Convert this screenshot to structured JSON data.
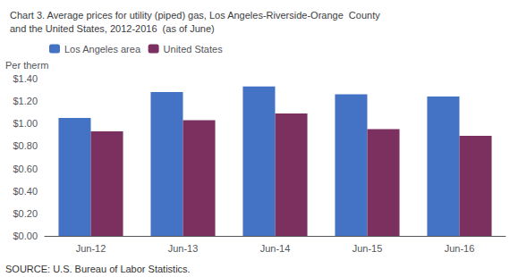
{
  "chart_data": {
    "type": "bar",
    "title": "Chart 3. Average prices for utility (piped) gas, Los Angeles-Riverside-Orange  County\nand the United States, 2012-2016  (as of June)",
    "ylabel": "Per therm",
    "annotations": [
      "SOURCE: U.S. Bureau of Labor Statistics."
    ],
    "categories": [
      "Jun-12",
      "Jun-13",
      "Jun-14",
      "Jun-15",
      "Jun-16"
    ],
    "series": [
      {
        "name": "Los Angeles area",
        "color": "#4472C4",
        "values": [
          1.05,
          1.28,
          1.33,
          1.26,
          1.24
        ]
      },
      {
        "name": "United States",
        "color": "#7B3060",
        "values": [
          0.93,
          1.03,
          1.09,
          0.95,
          0.89
        ]
      }
    ],
    "ylim": [
      0.0,
      1.4
    ],
    "yticks": [
      {
        "value": 0.0,
        "label": "$0.00"
      },
      {
        "value": 0.2,
        "label": "$0.20"
      },
      {
        "value": 0.4,
        "label": "$0.40"
      },
      {
        "value": 0.6,
        "label": "$0.60"
      },
      {
        "value": 0.8,
        "label": "$0.80"
      },
      {
        "value": 1.0,
        "label": "$1.00"
      },
      {
        "value": 1.2,
        "label": "$1.20"
      },
      {
        "value": 1.4,
        "label": "$1.40"
      }
    ],
    "grid": false,
    "legend": "upper left"
  }
}
